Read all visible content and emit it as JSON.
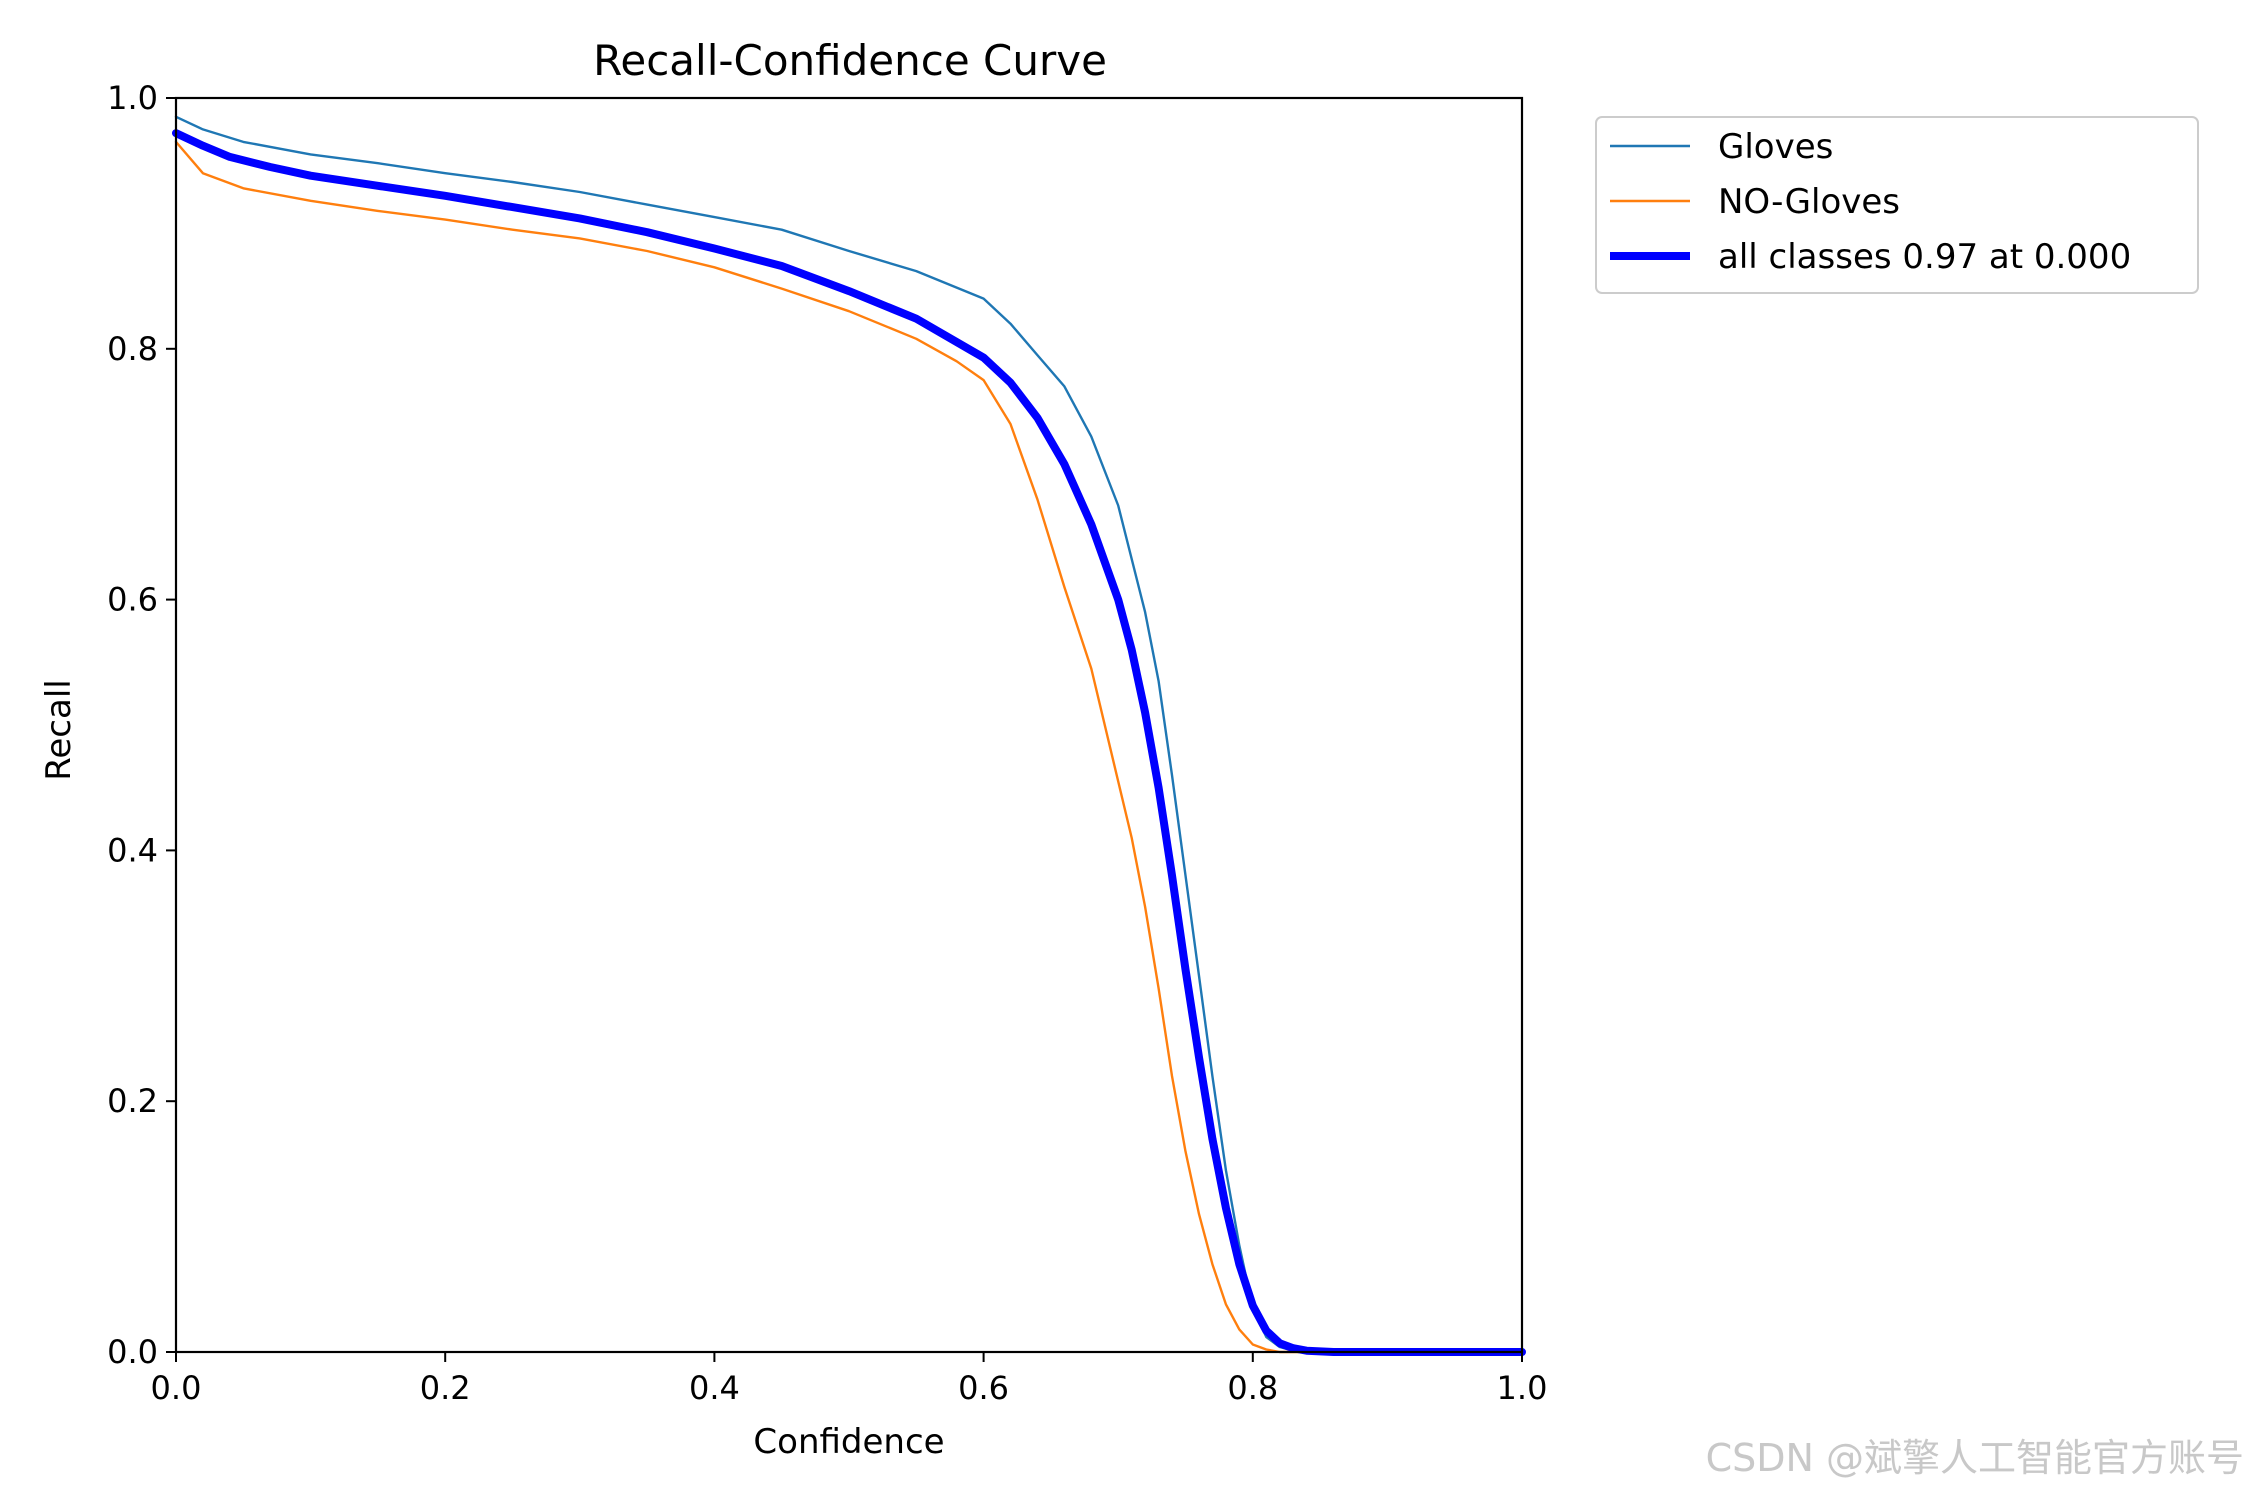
{
  "chart_data": {
    "type": "line",
    "title": "Recall-Confidence Curve",
    "xlabel": "Confidence",
    "ylabel": "Recall",
    "xlim": [
      0,
      1
    ],
    "ylim": [
      0,
      1
    ],
    "xticks": [
      "0.0",
      "0.2",
      "0.4",
      "0.6",
      "0.8",
      "1.0"
    ],
    "yticks": [
      "0.0",
      "0.2",
      "0.4",
      "0.6",
      "0.8",
      "1.0"
    ],
    "grid": false,
    "legend_position": "outside-top-right",
    "series": [
      {
        "name": "Gloves",
        "color": "#1f77b4",
        "x": [
          0.0,
          0.02,
          0.05,
          0.1,
          0.15,
          0.2,
          0.25,
          0.3,
          0.35,
          0.4,
          0.45,
          0.5,
          0.55,
          0.6,
          0.62,
          0.64,
          0.66,
          0.68,
          0.7,
          0.72,
          0.73,
          0.74,
          0.75,
          0.76,
          0.77,
          0.78,
          0.79,
          0.8,
          0.81,
          0.82,
          0.83,
          0.85,
          1.0
        ],
        "y": [
          0.985,
          0.975,
          0.965,
          0.955,
          0.948,
          0.94,
          0.933,
          0.925,
          0.915,
          0.905,
          0.895,
          0.878,
          0.862,
          0.84,
          0.82,
          0.795,
          0.77,
          0.73,
          0.675,
          0.59,
          0.535,
          0.46,
          0.38,
          0.3,
          0.22,
          0.145,
          0.085,
          0.035,
          0.012,
          0.004,
          0.001,
          0.0,
          0.0
        ]
      },
      {
        "name": "NO-Gloves",
        "color": "#ff7f0e",
        "x": [
          0.0,
          0.02,
          0.05,
          0.1,
          0.15,
          0.2,
          0.25,
          0.3,
          0.35,
          0.4,
          0.45,
          0.5,
          0.55,
          0.58,
          0.6,
          0.62,
          0.64,
          0.66,
          0.68,
          0.7,
          0.71,
          0.72,
          0.73,
          0.74,
          0.75,
          0.76,
          0.77,
          0.78,
          0.79,
          0.8,
          0.81,
          0.82,
          0.83,
          1.0
        ],
        "y": [
          0.965,
          0.94,
          0.928,
          0.918,
          0.91,
          0.903,
          0.895,
          0.888,
          0.878,
          0.865,
          0.848,
          0.83,
          0.808,
          0.79,
          0.775,
          0.74,
          0.68,
          0.61,
          0.545,
          0.455,
          0.41,
          0.355,
          0.29,
          0.22,
          0.16,
          0.11,
          0.07,
          0.038,
          0.018,
          0.006,
          0.002,
          0.0,
          0.0,
          0.0
        ]
      },
      {
        "name": "all classes 0.97 at 0.000",
        "color": "#0000ff",
        "bold": true,
        "x": [
          0.0,
          0.02,
          0.04,
          0.07,
          0.1,
          0.15,
          0.2,
          0.25,
          0.3,
          0.35,
          0.4,
          0.45,
          0.5,
          0.55,
          0.6,
          0.62,
          0.64,
          0.66,
          0.68,
          0.7,
          0.71,
          0.72,
          0.73,
          0.74,
          0.75,
          0.76,
          0.77,
          0.78,
          0.79,
          0.8,
          0.81,
          0.82,
          0.83,
          0.84,
          0.86,
          1.0
        ],
        "y": [
          0.972,
          0.962,
          0.953,
          0.945,
          0.938,
          0.93,
          0.922,
          0.913,
          0.904,
          0.893,
          0.88,
          0.866,
          0.846,
          0.824,
          0.793,
          0.773,
          0.745,
          0.708,
          0.66,
          0.6,
          0.56,
          0.51,
          0.45,
          0.38,
          0.305,
          0.235,
          0.17,
          0.115,
          0.07,
          0.037,
          0.017,
          0.007,
          0.003,
          0.001,
          0.0,
          0.0
        ]
      }
    ]
  },
  "watermark": "CSDN @斌擎人工智能官方账号"
}
